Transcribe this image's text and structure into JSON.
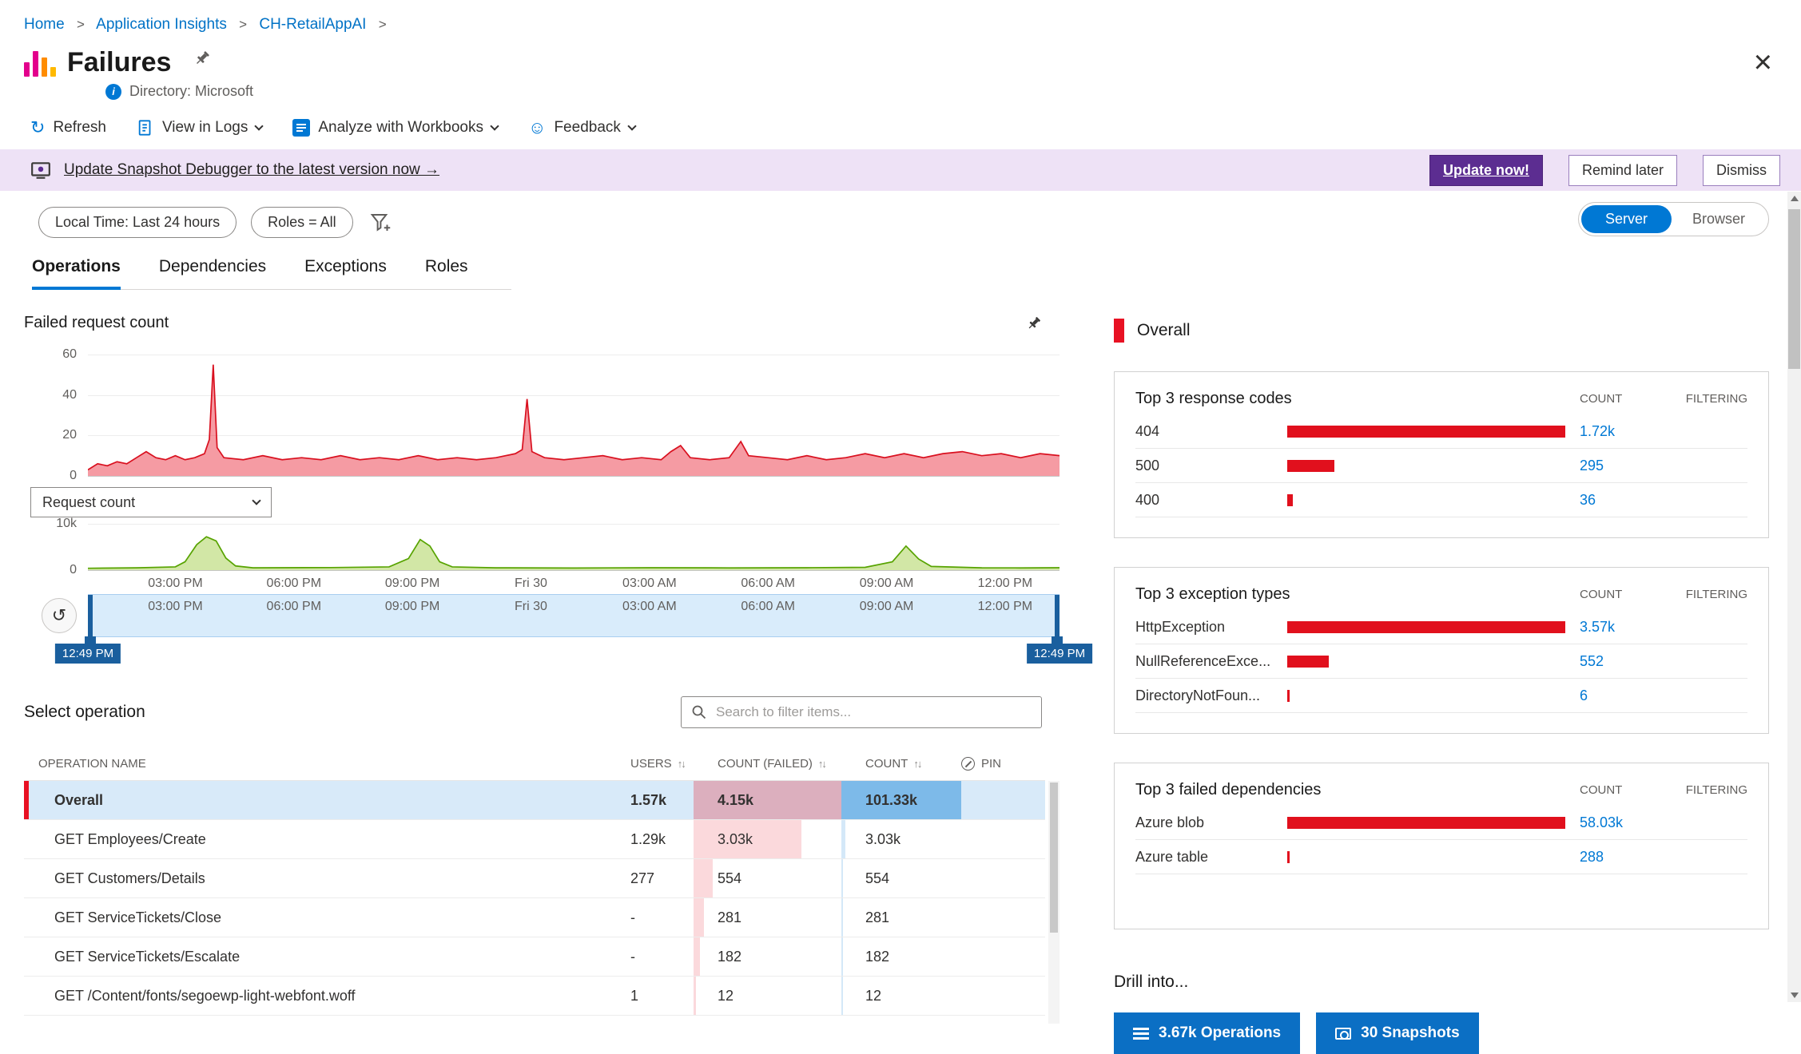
{
  "icons": {
    "refresh": "↻",
    "feedback": "☺",
    "close": "×",
    "sort": "↑↓",
    "reset": "↺"
  },
  "breadcrumb": {
    "items": [
      "Home",
      "Application Insights",
      "CH-RetailAppAI"
    ],
    "separator": ">"
  },
  "header": {
    "title": "Failures",
    "directory": "Directory: Microsoft"
  },
  "toolbar": {
    "refresh": "Refresh",
    "view_in_logs": "View in Logs",
    "analyze": "Analyze with Workbooks",
    "feedback": "Feedback"
  },
  "banner": {
    "message": "Update Snapshot Debugger to the latest version now →",
    "update_label": "Update now!",
    "remind_label": "Remind later",
    "dismiss_label": "Dismiss"
  },
  "filters": {
    "time_pill": "Local Time: Last 24 hours",
    "roles_pill": "Roles = All",
    "server_label": "Server",
    "browser_label": "Browser"
  },
  "tabs": [
    "Operations",
    "Dependencies",
    "Exceptions",
    "Roles"
  ],
  "charts": {
    "failed_title": "Failed request count",
    "dropdown_value": "Request count",
    "xticks": [
      "03:00 PM",
      "06:00 PM",
      "09:00 PM",
      "Fri 30",
      "03:00 AM",
      "06:00 AM",
      "09:00 AM",
      "12:00 PM"
    ],
    "xtick_pos": [
      0.09,
      0.212,
      0.334,
      0.456,
      0.578,
      0.7,
      0.822,
      0.944
    ],
    "brush_start": "12:49 PM",
    "brush_end": "12:49 PM",
    "failed": {
      "type": "area",
      "yticks": [
        "60",
        "40",
        "20",
        "0"
      ],
      "ymax": 60,
      "points": [
        [
          0,
          3
        ],
        [
          0.01,
          6
        ],
        [
          0.02,
          5
        ],
        [
          0.03,
          7
        ],
        [
          0.04,
          6
        ],
        [
          0.05,
          9
        ],
        [
          0.06,
          12
        ],
        [
          0.07,
          9
        ],
        [
          0.08,
          8
        ],
        [
          0.09,
          10
        ],
        [
          0.1,
          8
        ],
        [
          0.11,
          9
        ],
        [
          0.12,
          11
        ],
        [
          0.125,
          18
        ],
        [
          0.129,
          55
        ],
        [
          0.133,
          14
        ],
        [
          0.14,
          9
        ],
        [
          0.16,
          8
        ],
        [
          0.18,
          10
        ],
        [
          0.2,
          8
        ],
        [
          0.22,
          9
        ],
        [
          0.24,
          8
        ],
        [
          0.26,
          10
        ],
        [
          0.28,
          8
        ],
        [
          0.3,
          9
        ],
        [
          0.32,
          8
        ],
        [
          0.34,
          10
        ],
        [
          0.36,
          8
        ],
        [
          0.38,
          9
        ],
        [
          0.4,
          8
        ],
        [
          0.42,
          9
        ],
        [
          0.44,
          11
        ],
        [
          0.447,
          13
        ],
        [
          0.452,
          38
        ],
        [
          0.457,
          12
        ],
        [
          0.47,
          9
        ],
        [
          0.49,
          8
        ],
        [
          0.51,
          9
        ],
        [
          0.53,
          10
        ],
        [
          0.55,
          8
        ],
        [
          0.57,
          9
        ],
        [
          0.59,
          8
        ],
        [
          0.6,
          12
        ],
        [
          0.61,
          15
        ],
        [
          0.62,
          9
        ],
        [
          0.64,
          8
        ],
        [
          0.66,
          9
        ],
        [
          0.672,
          17
        ],
        [
          0.68,
          10
        ],
        [
          0.7,
          9
        ],
        [
          0.72,
          8
        ],
        [
          0.74,
          10
        ],
        [
          0.76,
          8
        ],
        [
          0.78,
          9
        ],
        [
          0.8,
          11
        ],
        [
          0.82,
          9
        ],
        [
          0.84,
          11
        ],
        [
          0.86,
          9
        ],
        [
          0.88,
          11
        ],
        [
          0.9,
          12
        ],
        [
          0.92,
          10
        ],
        [
          0.94,
          11
        ],
        [
          0.96,
          9
        ],
        [
          0.98,
          11
        ],
        [
          1,
          10
        ]
      ]
    },
    "requests": {
      "type": "area",
      "yticks": [
        "10k",
        "0"
      ],
      "ymax": 10000,
      "points": [
        [
          0,
          400
        ],
        [
          0.05,
          500
        ],
        [
          0.09,
          700
        ],
        [
          0.1,
          1800
        ],
        [
          0.112,
          5500
        ],
        [
          0.122,
          7200
        ],
        [
          0.132,
          6300
        ],
        [
          0.142,
          2600
        ],
        [
          0.152,
          900
        ],
        [
          0.17,
          500
        ],
        [
          0.25,
          550
        ],
        [
          0.31,
          700
        ],
        [
          0.33,
          2500
        ],
        [
          0.342,
          6600
        ],
        [
          0.352,
          5200
        ],
        [
          0.362,
          1800
        ],
        [
          0.375,
          700
        ],
        [
          0.42,
          500
        ],
        [
          0.5,
          450
        ],
        [
          0.58,
          520
        ],
        [
          0.66,
          480
        ],
        [
          0.74,
          520
        ],
        [
          0.8,
          600
        ],
        [
          0.828,
          1800
        ],
        [
          0.842,
          5200
        ],
        [
          0.855,
          2400
        ],
        [
          0.868,
          800
        ],
        [
          0.92,
          500
        ],
        [
          0.96,
          480
        ],
        [
          1,
          520
        ]
      ]
    }
  },
  "operations": {
    "title": "Select operation",
    "search_placeholder": "Search to filter items...",
    "columns": {
      "name": "OPERATION NAME",
      "users": "USERS",
      "failed": "COUNT (FAILED)",
      "count": "COUNT",
      "pin": "PIN"
    },
    "rows": [
      {
        "name": "Overall",
        "users": "1.57k",
        "failed": "4.15k",
        "count": "101.33k",
        "failed_pct": 100,
        "count_pct": 100,
        "selected": true
      },
      {
        "name": "GET Employees/Create",
        "users": "1.29k",
        "failed": "3.03k",
        "count": "3.03k",
        "failed_pct": 73,
        "count_pct": 3,
        "selected": false
      },
      {
        "name": "GET Customers/Details",
        "users": "277",
        "failed": "554",
        "count": "554",
        "failed_pct": 13,
        "count_pct": 0.5,
        "selected": false
      },
      {
        "name": "GET ServiceTickets/Close",
        "users": "-",
        "failed": "281",
        "count": "281",
        "failed_pct": 7,
        "count_pct": 0.3,
        "selected": false
      },
      {
        "name": "GET ServiceTickets/Escalate",
        "users": "-",
        "failed": "182",
        "count": "182",
        "failed_pct": 4.4,
        "count_pct": 0.2,
        "selected": false
      },
      {
        "name": "GET /Content/fonts/segoewp-light-webfont.woff",
        "users": "1",
        "failed": "12",
        "count": "12",
        "failed_pct": 0.3,
        "count_pct": 0.1,
        "selected": false
      }
    ]
  },
  "insights": {
    "overall_label": "Overall",
    "cards": [
      {
        "title": "Top 3 response codes",
        "count_header": "COUNT",
        "filtering_header": "FILTERING",
        "rows": [
          {
            "label": "404",
            "count": "1.72k",
            "pct": 100
          },
          {
            "label": "500",
            "count": "295",
            "pct": 17
          },
          {
            "label": "400",
            "count": "36",
            "pct": 2
          }
        ]
      },
      {
        "title": "Top 3 exception types",
        "count_header": "COUNT",
        "filtering_header": "FILTERING",
        "rows": [
          {
            "label": "HttpException",
            "count": "3.57k",
            "pct": 100
          },
          {
            "label": "NullReferenceExce...",
            "count": "552",
            "pct": 15
          },
          {
            "label": "DirectoryNotFoun...",
            "count": "6",
            "pct": 0.5
          }
        ]
      },
      {
        "title": "Top 3 failed dependencies",
        "count_header": "COUNT",
        "filtering_header": "FILTERING",
        "rows": [
          {
            "label": "Azure blob",
            "count": "58.03k",
            "pct": 100
          },
          {
            "label": "Azure table",
            "count": "288",
            "pct": 0.5
          }
        ]
      }
    ],
    "drill_label": "Drill into...",
    "drill_buttons": [
      "3.67k Operations",
      "30 Snapshots"
    ]
  },
  "colors": {
    "accent": "#0078d4",
    "red": "#e81123",
    "purple": "#5c2d91",
    "green": "#57a300"
  }
}
